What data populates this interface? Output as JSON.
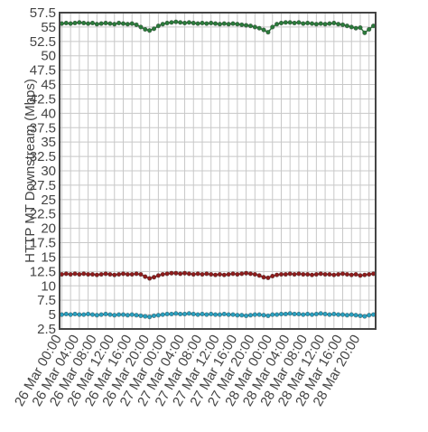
{
  "chart_data": {
    "type": "line",
    "y_label": "HTTP MT Downstream (Mbps)",
    "categories": [
      "26 Mar 00:00",
      null,
      null,
      null,
      "26 Mar 04:00",
      null,
      null,
      null,
      "26 Mar 08:00",
      null,
      null,
      null,
      "26 Mar 12:00",
      null,
      null,
      null,
      "26 Mar 16:00",
      null,
      null,
      null,
      "26 Mar 20:00",
      null,
      null,
      null,
      "27 Mar 00:00",
      null,
      null,
      null,
      "27 Mar 04:00",
      null,
      null,
      null,
      "27 Mar 08:00",
      null,
      null,
      null,
      "27 Mar 12:00",
      null,
      null,
      null,
      "27 Mar 16:00",
      null,
      null,
      null,
      "27 Mar 20:00",
      null,
      null,
      null,
      "28 Mar 00:00",
      null,
      null,
      null,
      "28 Mar 04:00",
      null,
      null,
      null,
      "28 Mar 08:00",
      null,
      null,
      null,
      "28 Mar 12:00",
      null,
      null,
      null,
      "28 Mar 16:00",
      null,
      null,
      null,
      "28 Mar 20:00",
      null,
      null,
      null
    ],
    "series": [
      {
        "color": "#2b7a3b",
        "values": [
          55.6,
          55.7,
          55.6,
          55.7,
          55.8,
          55.7,
          55.6,
          55.7,
          55.5,
          55.6,
          55.7,
          55.6,
          55.5,
          55.7,
          55.6,
          55.5,
          55.6,
          55.4,
          55.0,
          54.6,
          54.4,
          54.7,
          55.2,
          55.5,
          55.7,
          55.8,
          55.9,
          55.8,
          55.7,
          55.8,
          55.7,
          55.6,
          55.7,
          55.6,
          55.7,
          55.6,
          55.5,
          55.6,
          55.5,
          55.6,
          55.5,
          55.4,
          55.3,
          55.2,
          55.0,
          54.8,
          54.5,
          54.1,
          55.0,
          55.5,
          55.7,
          55.8,
          55.8,
          55.7,
          55.8,
          55.6,
          55.7,
          55.6,
          55.5,
          55.6,
          55.5,
          55.6,
          55.7,
          55.5,
          55.4,
          55.2,
          55.0,
          54.8,
          54.9,
          54.0,
          54.6,
          55.2
        ]
      },
      {
        "color": "#8e1c1c",
        "values": [
          12.0,
          12.1,
          12.0,
          12.1,
          12.0,
          12.1,
          12.0,
          12.0,
          11.9,
          12.0,
          12.1,
          12.0,
          11.9,
          12.0,
          12.1,
          12.0,
          12.0,
          12.1,
          12.0,
          11.6,
          11.3,
          11.5,
          11.8,
          12.0,
          12.1,
          12.2,
          12.2,
          12.1,
          12.2,
          12.1,
          12.0,
          12.1,
          12.0,
          12.1,
          12.0,
          11.9,
          12.0,
          11.9,
          12.0,
          12.1,
          12.0,
          12.1,
          12.2,
          12.1,
          12.0,
          11.8,
          11.5,
          11.4,
          11.7,
          11.9,
          12.0,
          12.0,
          12.1,
          12.0,
          12.1,
          12.0,
          12.0,
          11.9,
          12.0,
          12.1,
          12.0,
          12.0,
          11.9,
          12.0,
          12.1,
          12.0,
          11.9,
          12.0,
          11.8,
          11.9,
          12.0,
          12.1
        ]
      },
      {
        "color": "#2a9fbe",
        "values": [
          5.0,
          5.1,
          5.0,
          5.1,
          5.0,
          5.0,
          5.1,
          5.0,
          4.9,
          5.0,
          5.1,
          5.0,
          4.9,
          5.0,
          5.0,
          4.9,
          5.0,
          4.9,
          4.8,
          4.7,
          4.6,
          4.8,
          4.9,
          5.0,
          5.1,
          5.1,
          5.2,
          5.1,
          5.1,
          5.2,
          5.1,
          5.0,
          5.1,
          5.0,
          5.1,
          5.0,
          5.0,
          5.1,
          5.0,
          5.0,
          4.9,
          4.9,
          4.8,
          4.9,
          5.0,
          5.0,
          4.9,
          4.8,
          5.0,
          5.0,
          5.1,
          5.1,
          5.2,
          5.1,
          5.1,
          5.0,
          5.1,
          5.0,
          5.1,
          5.2,
          5.1,
          5.0,
          5.1,
          5.0,
          5.0,
          4.9,
          5.0,
          4.9,
          4.8,
          4.7,
          4.9,
          5.0
        ]
      }
    ],
    "ylim": [
      2.5,
      57.5
    ],
    "yticks": [
      2.5,
      5,
      7.5,
      10,
      12.5,
      15,
      17.5,
      20,
      22.5,
      25,
      27.5,
      30,
      32.5,
      35,
      37.5,
      40,
      42.5,
      45,
      47.5,
      50,
      52.5,
      55,
      57.5
    ],
    "grid": true
  }
}
